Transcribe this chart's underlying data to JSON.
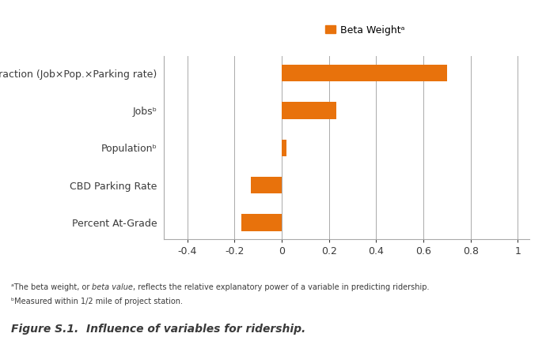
{
  "categories": [
    "Percent At-Grade",
    "CBD Parking Rate",
    "Populationᵇ",
    "Jobsᵇ",
    "Interaction (Job×Pop.×Parking rate)"
  ],
  "values": [
    -0.17,
    -0.13,
    0.02,
    0.23,
    0.7
  ],
  "bar_color": "#E8720C",
  "xlim": [
    -0.5,
    1.05
  ],
  "xticks": [
    -0.4,
    -0.2,
    0.0,
    0.2,
    0.4,
    0.6,
    0.8,
    1.0
  ],
  "legend_label": "Beta Weightᵃ",
  "footnote1a": "ᵃThe beta weight, or ",
  "footnote1b": "beta value",
  "footnote1c": ", reflects the relative explanatory power of a variable in predicting ridership.",
  "footnote2": "ᵇMeasured within 1/2 mile of project station.",
  "figure_caption": "Figure S.1.  Influence of variables for ridership.",
  "background_color": "#ffffff",
  "grid_color": "#aaaaaa",
  "bar_height": 0.45,
  "text_color": "#3a3a3a",
  "label_fontsize": 9,
  "footnote_fontsize": 7,
  "caption_fontsize": 10
}
